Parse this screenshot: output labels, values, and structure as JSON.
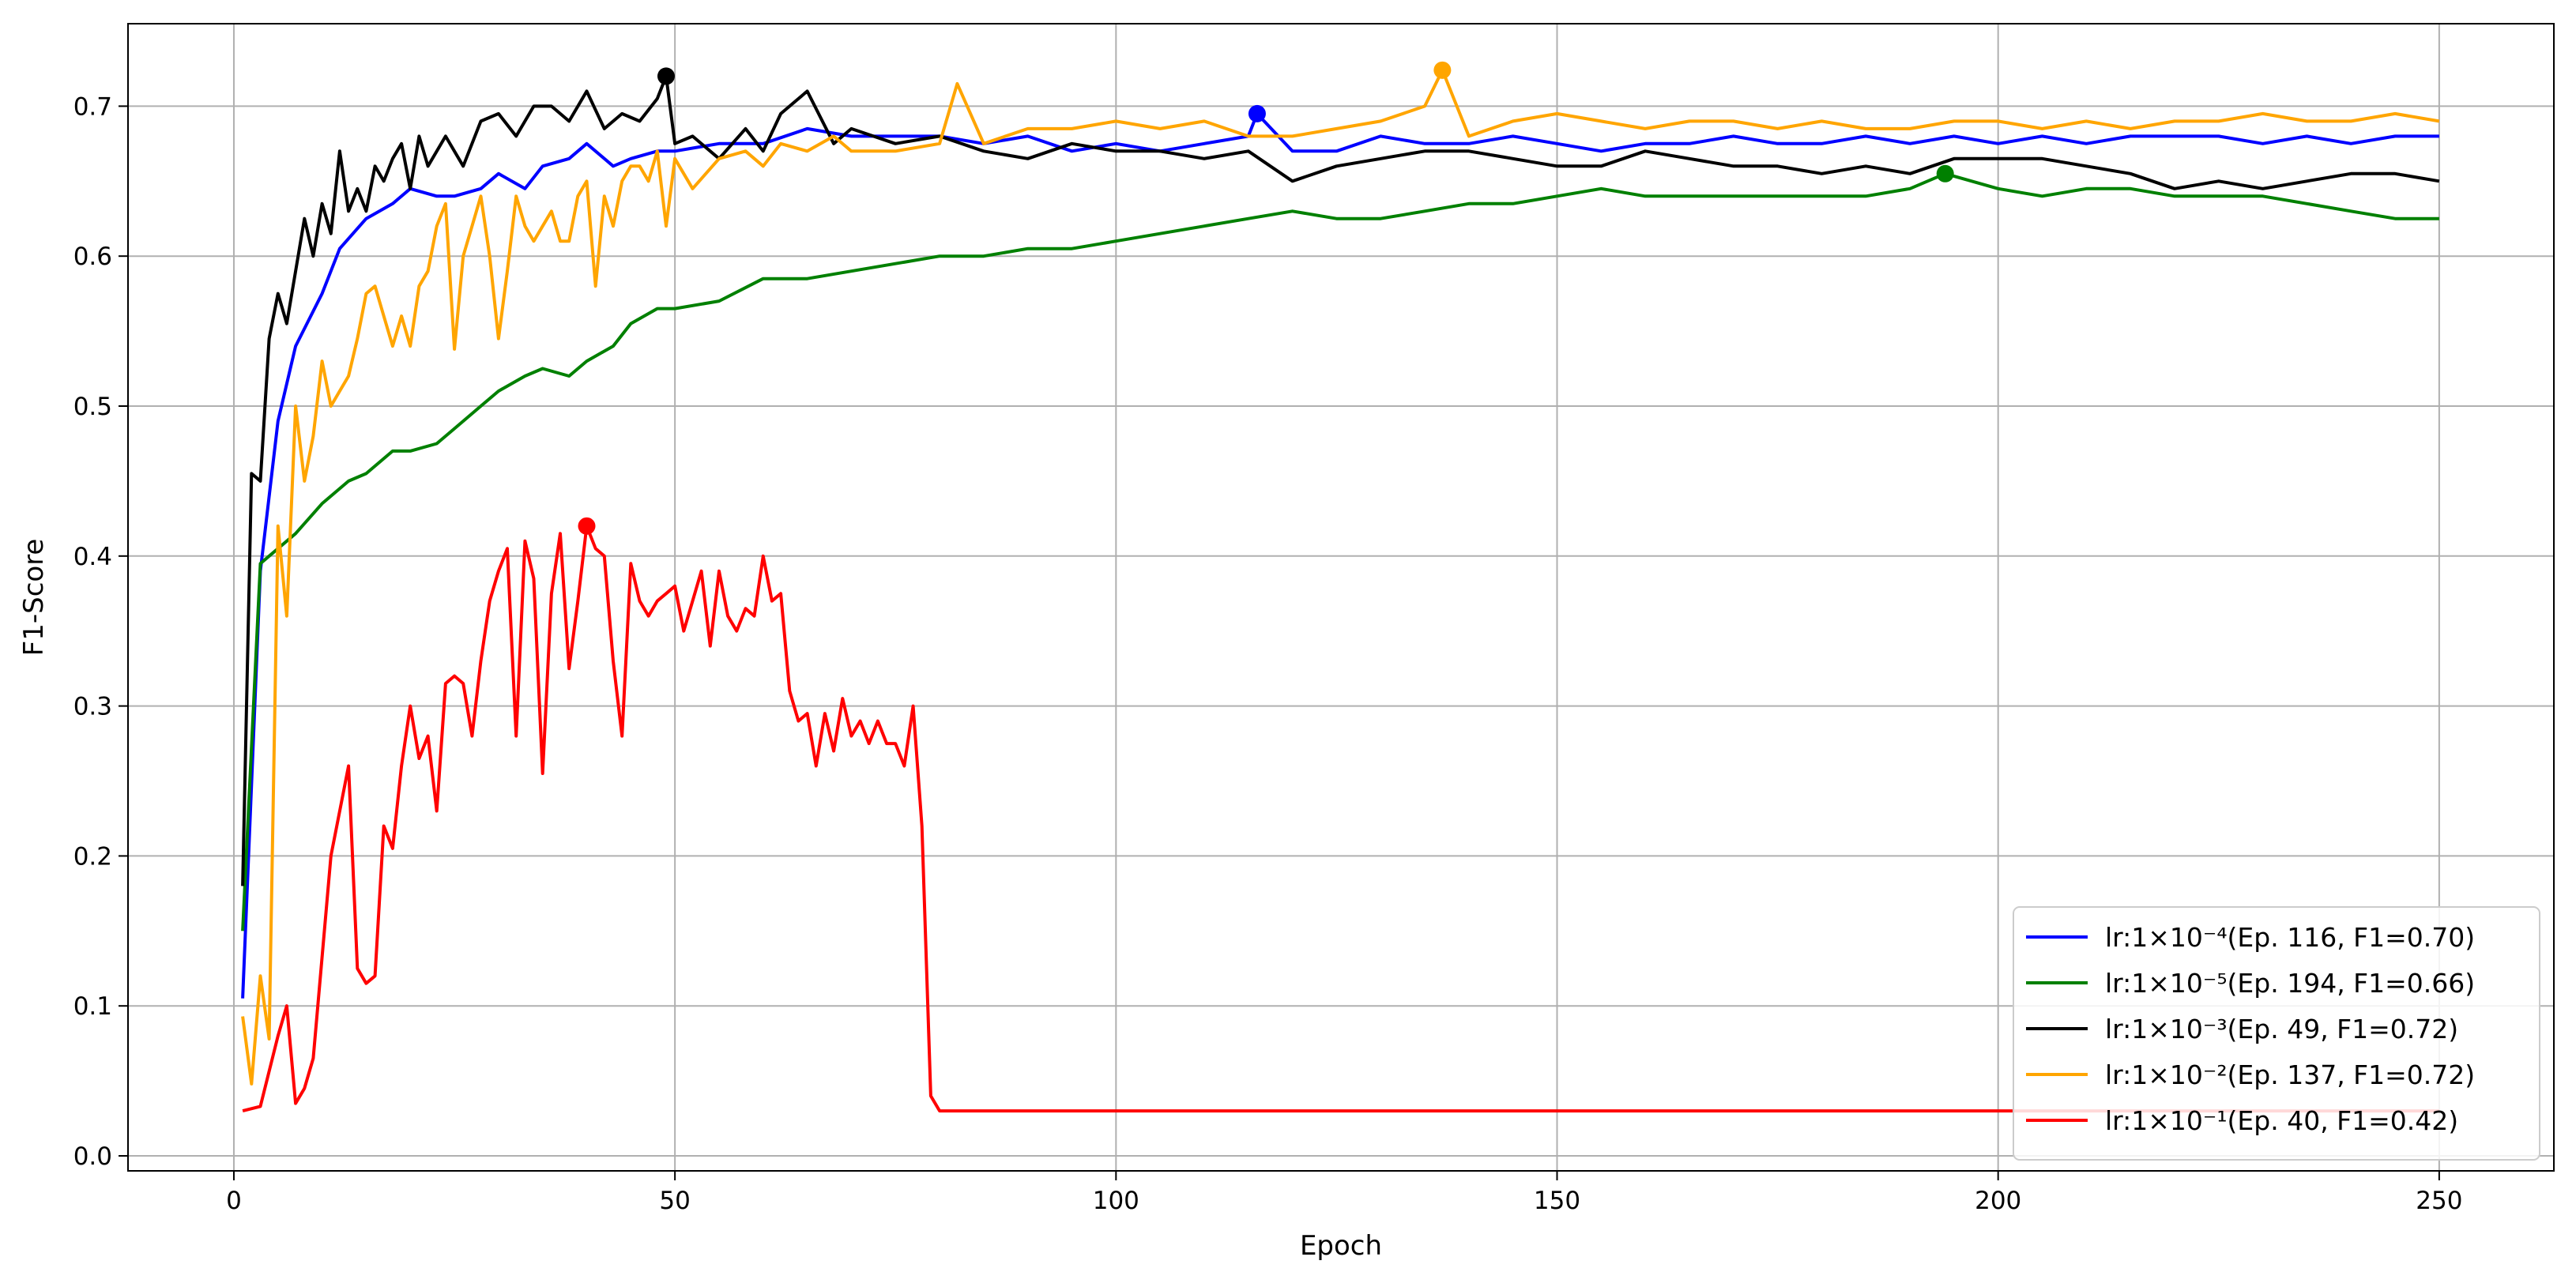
{
  "chart_data": {
    "type": "line",
    "title": "",
    "xlabel": "Epoch",
    "ylabel": "F1-Score",
    "xlim": [
      -12,
      263
    ],
    "ylim": [
      -0.01,
      0.755
    ],
    "xticks": [
      0,
      50,
      100,
      150,
      200,
      250
    ],
    "yticks": [
      0.0,
      0.1,
      0.2,
      0.3,
      0.4,
      0.5,
      0.6,
      0.7
    ],
    "ytick_labels": [
      "0.0",
      "0.1",
      "0.2",
      "0.3",
      "0.4",
      "0.5",
      "0.6",
      "0.7"
    ],
    "grid": true,
    "legend_position": "lower-right",
    "series": [
      {
        "name": "lr:1×10⁻⁴(Ep. 116, F1=0.70)",
        "color": "#0000ff",
        "best": {
          "x": 116,
          "y": 0.695
        },
        "x": [
          1,
          3,
          5,
          7,
          10,
          12,
          15,
          18,
          20,
          23,
          25,
          28,
          30,
          33,
          35,
          38,
          40,
          43,
          45,
          48,
          50,
          55,
          60,
          65,
          70,
          75,
          80,
          85,
          90,
          95,
          100,
          105,
          110,
          115,
          116,
          120,
          125,
          130,
          135,
          140,
          145,
          150,
          155,
          160,
          165,
          170,
          175,
          180,
          185,
          190,
          195,
          200,
          205,
          210,
          215,
          220,
          225,
          230,
          235,
          240,
          245,
          250
        ],
        "y": [
          0.105,
          0.39,
          0.49,
          0.54,
          0.575,
          0.605,
          0.625,
          0.635,
          0.645,
          0.64,
          0.64,
          0.645,
          0.655,
          0.645,
          0.66,
          0.665,
          0.675,
          0.66,
          0.665,
          0.67,
          0.67,
          0.675,
          0.675,
          0.685,
          0.68,
          0.68,
          0.68,
          0.675,
          0.68,
          0.67,
          0.675,
          0.67,
          0.675,
          0.68,
          0.695,
          0.67,
          0.67,
          0.68,
          0.675,
          0.675,
          0.68,
          0.675,
          0.67,
          0.675,
          0.675,
          0.68,
          0.675,
          0.675,
          0.68,
          0.675,
          0.68,
          0.675,
          0.68,
          0.675,
          0.68,
          0.68,
          0.68,
          0.675,
          0.68,
          0.675,
          0.68,
          0.68
        ]
      },
      {
        "name": "lr:1×10⁻⁵(Ep. 194, F1=0.66)",
        "color": "#008000",
        "best": {
          "x": 194,
          "y": 0.655
        },
        "x": [
          1,
          3,
          5,
          7,
          10,
          13,
          15,
          18,
          20,
          23,
          25,
          28,
          30,
          33,
          35,
          38,
          40,
          43,
          45,
          48,
          50,
          55,
          60,
          65,
          70,
          75,
          80,
          85,
          90,
          95,
          100,
          105,
          110,
          115,
          120,
          125,
          130,
          135,
          140,
          145,
          150,
          155,
          160,
          165,
          170,
          175,
          180,
          185,
          190,
          194,
          200,
          205,
          210,
          215,
          220,
          225,
          230,
          235,
          240,
          245,
          250
        ],
        "y": [
          0.15,
          0.395,
          0.405,
          0.415,
          0.435,
          0.45,
          0.455,
          0.47,
          0.47,
          0.475,
          0.485,
          0.5,
          0.51,
          0.52,
          0.525,
          0.52,
          0.53,
          0.54,
          0.555,
          0.565,
          0.565,
          0.57,
          0.585,
          0.585,
          0.59,
          0.595,
          0.6,
          0.6,
          0.605,
          0.605,
          0.61,
          0.615,
          0.62,
          0.625,
          0.63,
          0.625,
          0.625,
          0.63,
          0.635,
          0.635,
          0.64,
          0.645,
          0.64,
          0.64,
          0.64,
          0.64,
          0.64,
          0.64,
          0.645,
          0.655,
          0.645,
          0.64,
          0.645,
          0.645,
          0.64,
          0.64,
          0.64,
          0.635,
          0.63,
          0.625,
          0.625
        ]
      },
      {
        "name": "lr:1×10⁻³(Ep. 49, F1=0.72)",
        "color": "#000000",
        "best": {
          "x": 49,
          "y": 0.72
        },
        "x": [
          1,
          2,
          3,
          4,
          5,
          6,
          7,
          8,
          9,
          10,
          11,
          12,
          13,
          14,
          15,
          16,
          17,
          18,
          19,
          20,
          21,
          22,
          24,
          26,
          28,
          30,
          32,
          34,
          36,
          38,
          40,
          42,
          44,
          46,
          48,
          49,
          50,
          52,
          55,
          58,
          60,
          62,
          65,
          68,
          70,
          75,
          80,
          85,
          90,
          95,
          100,
          105,
          110,
          115,
          120,
          125,
          130,
          135,
          140,
          145,
          150,
          155,
          160,
          165,
          170,
          175,
          180,
          185,
          190,
          195,
          200,
          205,
          210,
          215,
          220,
          225,
          230,
          235,
          240,
          245,
          250
        ],
        "y": [
          0.18,
          0.455,
          0.45,
          0.545,
          0.575,
          0.555,
          0.59,
          0.625,
          0.6,
          0.635,
          0.615,
          0.67,
          0.63,
          0.645,
          0.63,
          0.66,
          0.65,
          0.665,
          0.675,
          0.645,
          0.68,
          0.66,
          0.68,
          0.66,
          0.69,
          0.695,
          0.68,
          0.7,
          0.7,
          0.69,
          0.71,
          0.685,
          0.695,
          0.69,
          0.705,
          0.72,
          0.675,
          0.68,
          0.665,
          0.685,
          0.67,
          0.695,
          0.71,
          0.675,
          0.685,
          0.675,
          0.68,
          0.67,
          0.665,
          0.675,
          0.67,
          0.67,
          0.665,
          0.67,
          0.65,
          0.66,
          0.665,
          0.67,
          0.67,
          0.665,
          0.66,
          0.66,
          0.67,
          0.665,
          0.66,
          0.66,
          0.655,
          0.66,
          0.655,
          0.665,
          0.665,
          0.665,
          0.66,
          0.655,
          0.645,
          0.65,
          0.645,
          0.65,
          0.655,
          0.655,
          0.65
        ]
      },
      {
        "name": "lr:1×10⁻²(Ep. 137, F1=0.72)",
        "color": "#ffa500",
        "best": {
          "x": 137,
          "y": 0.724
        },
        "x": [
          1,
          2,
          3,
          4,
          5,
          6,
          7,
          8,
          9,
          10,
          11,
          12,
          13,
          14,
          15,
          16,
          17,
          18,
          19,
          20,
          21,
          22,
          23,
          24,
          25,
          26,
          27,
          28,
          29,
          30,
          31,
          32,
          33,
          34,
          35,
          36,
          37,
          38,
          39,
          40,
          41,
          42,
          43,
          44,
          45,
          46,
          47,
          48,
          49,
          50,
          52,
          55,
          58,
          60,
          62,
          65,
          68,
          70,
          75,
          80,
          82,
          85,
          90,
          95,
          100,
          105,
          110,
          115,
          120,
          125,
          130,
          135,
          137,
          140,
          145,
          150,
          155,
          160,
          165,
          170,
          175,
          180,
          185,
          190,
          195,
          200,
          205,
          210,
          215,
          220,
          225,
          230,
          235,
          240,
          245,
          250
        ],
        "y": [
          0.093,
          0.048,
          0.12,
          0.078,
          0.42,
          0.36,
          0.5,
          0.45,
          0.48,
          0.53,
          0.5,
          0.51,
          0.52,
          0.545,
          0.575,
          0.58,
          0.56,
          0.54,
          0.56,
          0.54,
          0.58,
          0.59,
          0.62,
          0.635,
          0.538,
          0.6,
          0.62,
          0.64,
          0.6,
          0.545,
          0.59,
          0.64,
          0.62,
          0.61,
          0.62,
          0.63,
          0.61,
          0.61,
          0.64,
          0.65,
          0.58,
          0.64,
          0.62,
          0.65,
          0.66,
          0.66,
          0.65,
          0.67,
          0.62,
          0.665,
          0.645,
          0.665,
          0.67,
          0.66,
          0.675,
          0.67,
          0.68,
          0.67,
          0.67,
          0.675,
          0.715,
          0.675,
          0.685,
          0.685,
          0.69,
          0.685,
          0.69,
          0.68,
          0.68,
          0.685,
          0.69,
          0.7,
          0.724,
          0.68,
          0.69,
          0.695,
          0.69,
          0.685,
          0.69,
          0.69,
          0.685,
          0.69,
          0.685,
          0.685,
          0.69,
          0.69,
          0.685,
          0.69,
          0.685,
          0.69,
          0.69,
          0.695,
          0.69,
          0.69,
          0.695,
          0.69
        ]
      },
      {
        "name": "lr:1×10⁻¹(Ep. 40, F1=0.42)",
        "color": "#ff0000",
        "best": {
          "x": 40,
          "y": 0.42
        },
        "x": [
          1,
          3,
          5,
          6,
          7,
          8,
          9,
          11,
          13,
          14,
          15,
          16,
          17,
          18,
          19,
          20,
          21,
          22,
          23,
          24,
          25,
          26,
          27,
          28,
          29,
          30,
          31,
          32,
          33,
          34,
          35,
          36,
          37,
          38,
          39,
          40,
          41,
          42,
          43,
          44,
          45,
          46,
          47,
          48,
          49,
          50,
          51,
          52,
          53,
          54,
          55,
          56,
          57,
          58,
          59,
          60,
          61,
          62,
          63,
          64,
          65,
          66,
          67,
          68,
          69,
          70,
          71,
          72,
          73,
          74,
          75,
          76,
          77,
          78,
          79,
          80,
          100,
          150,
          200,
          250
        ],
        "y": [
          0.03,
          0.033,
          0.08,
          0.1,
          0.035,
          0.045,
          0.065,
          0.2,
          0.26,
          0.125,
          0.115,
          0.12,
          0.22,
          0.205,
          0.26,
          0.3,
          0.265,
          0.28,
          0.23,
          0.315,
          0.32,
          0.315,
          0.28,
          0.33,
          0.37,
          0.39,
          0.405,
          0.28,
          0.41,
          0.385,
          0.255,
          0.375,
          0.415,
          0.325,
          0.37,
          0.42,
          0.405,
          0.4,
          0.33,
          0.28,
          0.395,
          0.37,
          0.36,
          0.37,
          0.375,
          0.38,
          0.35,
          0.37,
          0.39,
          0.34,
          0.39,
          0.36,
          0.35,
          0.365,
          0.36,
          0.4,
          0.37,
          0.375,
          0.31,
          0.29,
          0.295,
          0.26,
          0.295,
          0.27,
          0.305,
          0.28,
          0.29,
          0.275,
          0.29,
          0.275,
          0.275,
          0.26,
          0.3,
          0.22,
          0.04,
          0.03,
          0.03,
          0.03,
          0.03,
          0.03
        ]
      }
    ]
  }
}
